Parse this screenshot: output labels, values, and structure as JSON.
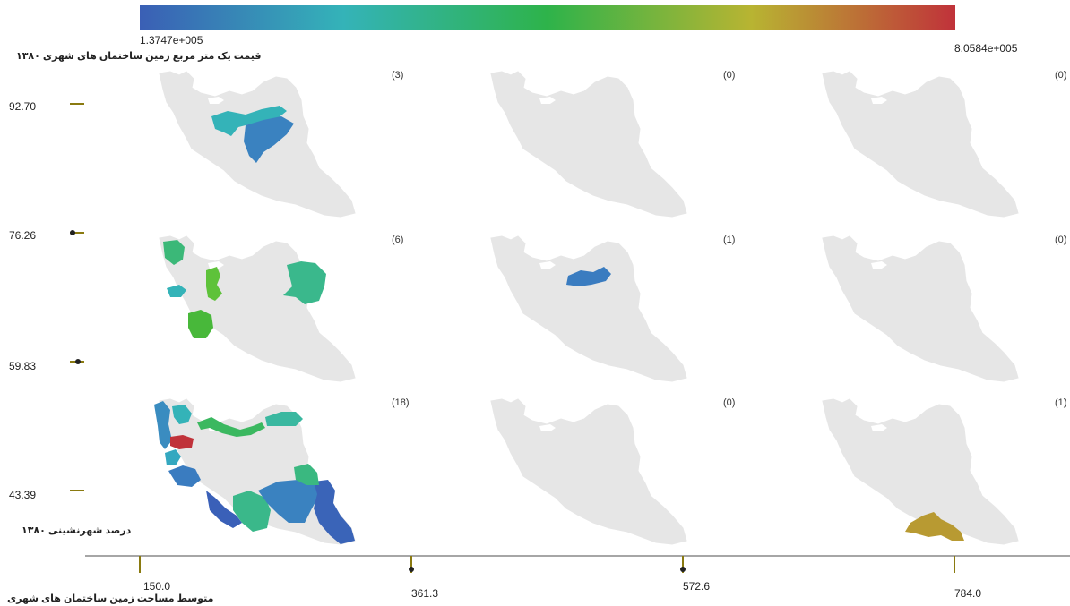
{
  "chart_data": {
    "type": "choropleth-small-multiples",
    "colorbar": {
      "min_label": "1.3747e+005",
      "max_label": "8.0584e+005",
      "colors": [
        "#3a5fb5",
        "#34b3b8",
        "#2eb34a",
        "#b8b432",
        "#c0323a"
      ]
    },
    "legend_title": "قیمت یک متر مربع زمین ساختمان های شهری ۱۳۸۰",
    "y_axis": {
      "title": "درصد شهرنشینی ۱۳۸۰",
      "ticks": [
        "92.70",
        "76.26",
        "59.83",
        "43.39"
      ]
    },
    "x_axis": {
      "title": "متوسط مساحت زمین ساختمان های شهری",
      "ticks": [
        "150.0",
        "361.3",
        "572.6",
        "784.0"
      ]
    },
    "panels": [
      {
        "row": 0,
        "col": 0,
        "count": "(3)",
        "regions": [
          {
            "shape": "north-belt",
            "color": "#34b3b8"
          },
          {
            "shape": "tehran-qom",
            "color": "#3a82c0"
          }
        ]
      },
      {
        "row": 0,
        "col": 1,
        "count": "(0)",
        "regions": []
      },
      {
        "row": 0,
        "col": 2,
        "count": "(0)",
        "regions": []
      },
      {
        "row": 1,
        "col": 0,
        "count": "(6)",
        "regions": [
          {
            "shape": "ardabil",
            "color": "#3bb878"
          },
          {
            "shape": "kordestan",
            "color": "#34b3b8"
          },
          {
            "shape": "markazi-small",
            "color": "#5ec23a"
          },
          {
            "shape": "lorestan",
            "color": "#48b83a"
          },
          {
            "shape": "khorasan-razavi",
            "color": "#3ab88c"
          }
        ]
      },
      {
        "row": 1,
        "col": 1,
        "count": "(1)",
        "regions": [
          {
            "shape": "semnan",
            "color": "#3a7cc0"
          }
        ]
      },
      {
        "row": 1,
        "col": 2,
        "count": "(0)",
        "regions": []
      },
      {
        "row": 2,
        "col": 0,
        "count": "(18)",
        "regions": [
          {
            "shape": "west-azarbaijan",
            "color": "#3a8cc0"
          },
          {
            "shape": "east-azarbaijan",
            "color": "#34b3b8"
          },
          {
            "shape": "gilan-mazandaran",
            "color": "#3bb860"
          },
          {
            "shape": "golestan",
            "color": "#3ab8a0"
          },
          {
            "shape": "zanjan",
            "color": "#c0323a"
          },
          {
            "shape": "hamedan",
            "color": "#34a8c0"
          },
          {
            "shape": "kermanshah",
            "color": "#3a7cc0"
          },
          {
            "shape": "khuzestan",
            "color": "#3a60b8"
          },
          {
            "shape": "fars",
            "color": "#3ab88a"
          },
          {
            "shape": "kerman",
            "color": "#3a82c0"
          },
          {
            "shape": "sistan",
            "color": "#3a64b8"
          },
          {
            "shape": "south-khorasan",
            "color": "#3ab880"
          }
        ]
      },
      {
        "row": 2,
        "col": 1,
        "count": "(0)",
        "regions": []
      },
      {
        "row": 2,
        "col": 2,
        "count": "(1)",
        "regions": [
          {
            "shape": "hormozgan",
            "color": "#b89a32"
          }
        ]
      }
    ]
  }
}
